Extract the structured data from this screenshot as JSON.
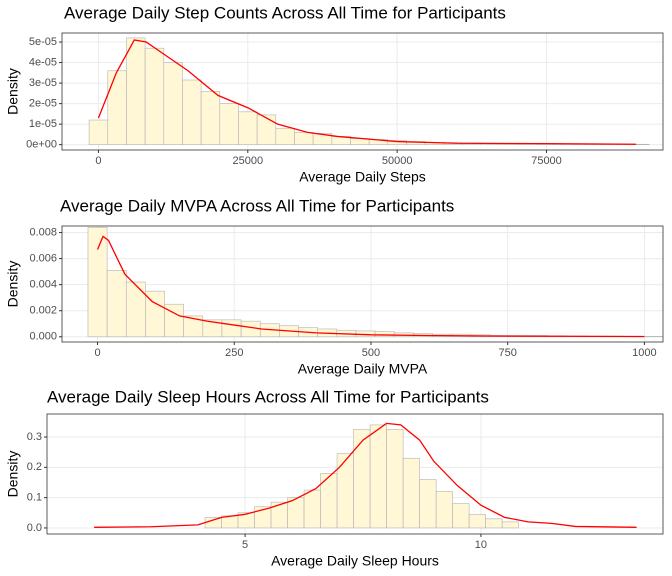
{
  "chart_data": [
    {
      "type": "histogram",
      "title": "Average Daily Step Counts Across All Time for Participants",
      "x_label": "Average Daily Steps",
      "y_label": "Density",
      "bins": [
        -1562.5,
        1562.5,
        4687.5,
        7812.5,
        10937.5,
        14062.5,
        17187.5,
        20312.5,
        23437.5,
        26562.5,
        29687.5,
        32812.5,
        35937.5,
        39062.5,
        42187.5,
        45312.5,
        48437.5,
        51562.5,
        54687.5,
        57812.5,
        60937.5,
        64062.5,
        67187.5,
        70312.5,
        73437.5,
        76562.5,
        79687.5,
        82812.5,
        85937.5,
        89062.5,
        92187.5
      ],
      "values": [
        1.2e-05,
        3.6e-05,
        5.2e-05,
        4.7e-05,
        4e-05,
        3.15e-05,
        2.6e-05,
        2e-05,
        1.6e-05,
        1.45e-05,
        8e-06,
        6e-06,
        5.5e-06,
        4e-06,
        3e-06,
        2.5e-06,
        2e-06,
        1.5e-06,
        1e-06,
        1e-06,
        8e-07,
        6e-07,
        5e-07,
        5e-07,
        4e-07,
        4e-07,
        3e-07,
        3e-07,
        2e-07,
        2e-07
      ],
      "color": "#fff7d6",
      "edge_color": "#b3b3b3",
      "density": {
        "x": [
          0,
          3000,
          6000,
          8000,
          10000,
          15000,
          20000,
          25000,
          30000,
          35000,
          40000,
          50000,
          60000,
          75000,
          90000
        ],
        "values": [
          1.3e-05,
          3.5e-05,
          5.1e-05,
          5e-05,
          4.6e-05,
          3.6e-05,
          2.4e-05,
          1.8e-05,
          1e-05,
          6e-06,
          4e-06,
          1.5e-06,
          7e-07,
          5e-07,
          2e-07
        ],
        "color": "#ff0000"
      },
      "xlim": [
        -6100,
        94500
      ],
      "xticks": [
        0,
        25000,
        50000,
        75000
      ],
      "ylim": [
        -2.6e-06,
        5.44e-05
      ],
      "yticks": [
        {
          "value": 0,
          "label": "0e+00"
        },
        {
          "value": 1e-05,
          "label": "1e-05"
        },
        {
          "value": 2e-05,
          "label": "2e-05"
        },
        {
          "value": 3e-05,
          "label": "3e-05"
        },
        {
          "value": 4e-05,
          "label": "4e-05"
        },
        {
          "value": 5e-05,
          "label": "5e-05"
        }
      ],
      "grid": true
    },
    {
      "type": "histogram",
      "title": "Average Daily MVPA Across All Time for Participants",
      "x_label": "Average Daily MVPA",
      "y_label": "Density",
      "bins": [
        -17.5,
        17.5,
        52.5,
        87.5,
        122.5,
        157.5,
        192.5,
        227.5,
        262.5,
        297.5,
        332.5,
        367.5,
        402.5,
        437.5,
        472.5,
        507.5,
        542.5,
        577.5,
        612.5,
        647.5,
        682.5,
        717.5,
        752.5,
        787.5,
        822.5,
        857.5,
        892.5,
        927.5,
        962.5,
        997.5,
        1032.5
      ],
      "values": [
        0.0084,
        0.0051,
        0.0042,
        0.0035,
        0.0025,
        0.0016,
        0.0013,
        0.0013,
        0.0012,
        0.001,
        0.00085,
        0.0007,
        0.0006,
        0.0005,
        0.00045,
        0.0004,
        0.0003,
        0.00025,
        0.0002,
        0.0002,
        0.00015,
        0.0001,
        0.0001,
        0.0001,
        8e-05,
        6e-05,
        5e-05,
        5e-05,
        4e-05,
        3e-05
      ],
      "color": "#fff7d6",
      "edge_color": "#b3b3b3",
      "density": {
        "x": [
          0,
          10,
          20,
          50,
          100,
          150,
          200,
          250,
          300,
          400,
          500,
          600,
          750,
          1000
        ],
        "values": [
          0.0067,
          0.0077,
          0.0074,
          0.0048,
          0.0027,
          0.0016,
          0.0012,
          0.0009,
          0.0006,
          0.0003,
          0.00015,
          0.0001,
          5e-05,
          2e-05
        ],
        "color": "#ff0000"
      },
      "xlim": [
        -65,
        1034
      ],
      "xticks": [
        0,
        250,
        500,
        750,
        1000
      ],
      "ylim": [
        -0.0004,
        0.0085
      ],
      "yticks": [
        {
          "value": 0,
          "label": "0.000"
        },
        0.002,
        0.004,
        0.006,
        0.008
      ],
      "grid": true
    },
    {
      "type": "histogram",
      "title": "Average Daily Sleep Hours Across All Time for Participants",
      "x_label": "Average Daily Sleep Hours",
      "y_label": "Density",
      "bins": [
        4.15,
        4.5,
        4.85,
        5.2,
        5.55,
        5.9,
        6.25,
        6.6,
        6.95,
        7.3,
        7.65,
        8.0,
        8.35,
        8.7,
        9.05,
        9.4,
        9.75,
        10.1,
        10.45,
        10.8
      ],
      "values": [
        0.035,
        0.04,
        0.05,
        0.07,
        0.085,
        0.1,
        0.125,
        0.18,
        0.245,
        0.325,
        0.34,
        0.325,
        0.23,
        0.16,
        0.12,
        0.08,
        0.045,
        0.03,
        0.02
      ],
      "color": "#fff7d6",
      "edge_color": "#b3b3b3",
      "density": {
        "x": [
          1.8,
          3,
          4,
          4.5,
          5,
          5.5,
          6,
          6.5,
          7,
          7.5,
          8,
          8.3,
          8.7,
          9,
          9.5,
          10,
          10.5,
          11,
          11.5,
          12,
          13.3
        ],
        "values": [
          0.002,
          0.004,
          0.01,
          0.035,
          0.045,
          0.065,
          0.09,
          0.13,
          0.2,
          0.29,
          0.345,
          0.34,
          0.29,
          0.22,
          0.14,
          0.075,
          0.035,
          0.02,
          0.015,
          0.005,
          0.002
        ],
        "color": "#ff0000"
      },
      "xlim": [
        0.8,
        13.86
      ],
      "xticks": [
        5,
        10
      ],
      "ylim": [
        -0.02,
        0.376
      ],
      "yticks": [
        {
          "value": 0,
          "label": "0.0"
        },
        0.1,
        0.2,
        0.3
      ],
      "grid": true
    }
  ]
}
